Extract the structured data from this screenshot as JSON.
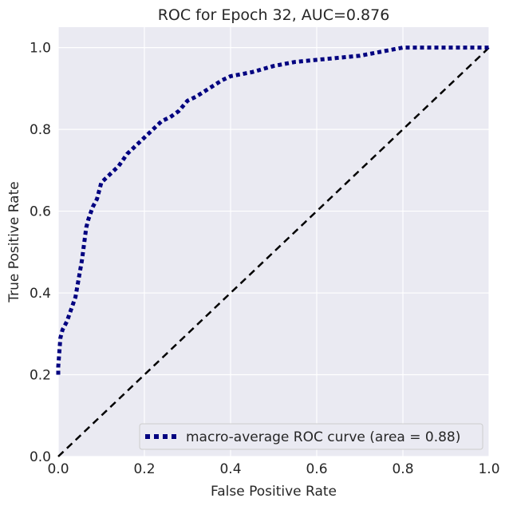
{
  "chart_data": {
    "type": "line",
    "title": "ROC for Epoch 32,  AUC=0.876",
    "xlabel": "False Positive Rate",
    "ylabel": "True Positive Rate",
    "xlim": [
      0.0,
      1.0
    ],
    "ylim": [
      0.0,
      1.05
    ],
    "xticks": [
      "0.0",
      "0.2",
      "0.4",
      "0.6",
      "0.8",
      "1.0"
    ],
    "yticks": [
      "0.0",
      "0.2",
      "0.4",
      "0.6",
      "0.8",
      "1.0"
    ],
    "grid": true,
    "legend_position": "lower-right",
    "colors": {
      "background": "#eaeaf2",
      "grid": "#ffffff",
      "roc_curve": "#000080",
      "chance_line": "#000000"
    },
    "series": [
      {
        "name": "macro-average ROC curve (area = 0.88)",
        "style": "dotted",
        "x": [
          0.0,
          0.0,
          0.005,
          0.01,
          0.02,
          0.03,
          0.04,
          0.045,
          0.05,
          0.055,
          0.06,
          0.065,
          0.07,
          0.08,
          0.09,
          0.1,
          0.12,
          0.14,
          0.16,
          0.18,
          0.2,
          0.22,
          0.24,
          0.26,
          0.28,
          0.3,
          0.32,
          0.35,
          0.38,
          0.4,
          0.45,
          0.5,
          0.55,
          0.6,
          0.65,
          0.7,
          0.75,
          0.8,
          0.85,
          0.9,
          0.95,
          1.0
        ],
        "y": [
          0.2,
          0.22,
          0.29,
          0.31,
          0.33,
          0.36,
          0.39,
          0.42,
          0.45,
          0.48,
          0.52,
          0.56,
          0.58,
          0.61,
          0.63,
          0.67,
          0.69,
          0.71,
          0.74,
          0.76,
          0.78,
          0.8,
          0.82,
          0.83,
          0.845,
          0.87,
          0.88,
          0.9,
          0.92,
          0.93,
          0.94,
          0.955,
          0.965,
          0.97,
          0.975,
          0.98,
          0.99,
          1.0,
          1.0,
          1.0,
          1.0,
          1.0
        ]
      },
      {
        "name": "",
        "style": "dashed",
        "x": [
          0.0,
          1.0
        ],
        "y": [
          0.0,
          1.0
        ]
      }
    ]
  }
}
